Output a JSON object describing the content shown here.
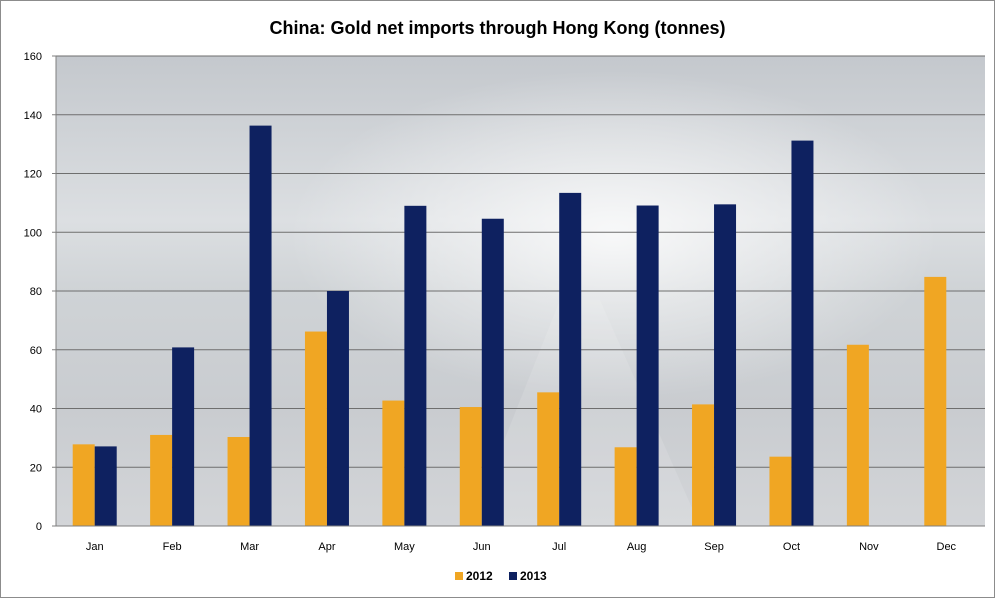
{
  "chart_data": {
    "type": "bar",
    "title": "China: Gold net imports through Hong Kong (tonnes)",
    "xlabel": "",
    "ylabel": "",
    "categories": [
      "Jan",
      "Feb",
      "Mar",
      "Apr",
      "May",
      "Jun",
      "Jul",
      "Aug",
      "Sep",
      "Oct",
      "Nov",
      "Dec"
    ],
    "series": [
      {
        "name": "2012",
        "color": "#f0a623",
        "values": [
          27.8,
          31.0,
          30.3,
          66.2,
          42.7,
          40.5,
          45.5,
          26.8,
          41.4,
          23.6,
          61.7,
          84.8
        ]
      },
      {
        "name": "2013",
        "color": "#0e2160",
        "values": [
          27.1,
          60.8,
          136.3,
          80.0,
          109.0,
          104.6,
          113.4,
          109.1,
          109.5,
          131.2,
          null,
          null
        ]
      }
    ],
    "ylim": [
      0,
      160
    ],
    "yticks": [
      0,
      20,
      40,
      60,
      80,
      100,
      120,
      140,
      160
    ],
    "grid": true,
    "legend": "bottom"
  }
}
